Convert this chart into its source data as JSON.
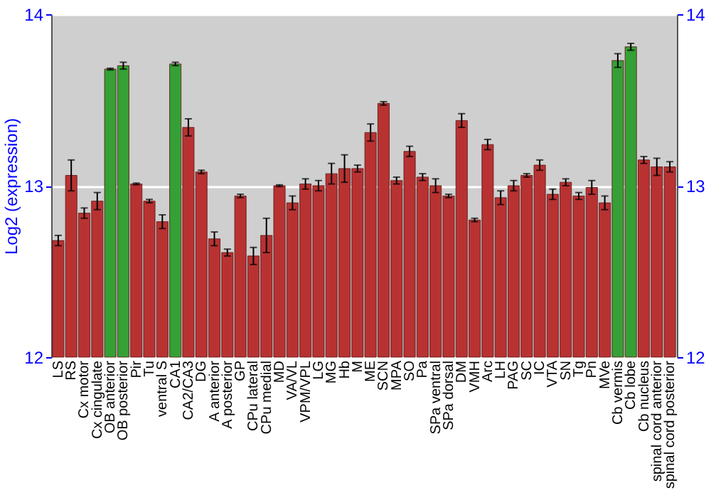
{
  "chart_data": {
    "type": "bar",
    "ylabel": "Log2 (expression)",
    "categories": [
      "LS",
      "RS",
      "Cx motor",
      "Cx cingulate",
      "OB anterior",
      "OB posterior",
      "Pir",
      "Tu",
      "ventral S",
      "CA1",
      "CA2/CA3",
      "DG",
      "A anterior",
      "A posterior",
      "GP",
      "CPu lateral",
      "CPu medial",
      "MD",
      "VA/VL",
      "VPM/VPL",
      "LG",
      "MG",
      "Hb",
      "M",
      "ME",
      "SCN",
      "MPA",
      "SO",
      "Pa",
      "SPa ventral",
      "SPa dorsal",
      "DM",
      "VMH",
      "Arc",
      "LH",
      "PAG",
      "SC",
      "IC",
      "VTA",
      "SN",
      "Tg",
      "Pn",
      "MVe",
      "Cb vermis",
      "Cb lobe",
      "Cb nucleus",
      "spinal cord anterior",
      "spinal cord posterior"
    ],
    "values": [
      12.68,
      13.06,
      12.84,
      12.91,
      13.68,
      13.7,
      13.01,
      12.91,
      12.79,
      13.71,
      13.34,
      13.08,
      12.69,
      12.61,
      12.94,
      12.59,
      12.71,
      13.0,
      12.9,
      13.01,
      13.0,
      13.07,
      13.1,
      13.1,
      13.31,
      13.48,
      13.03,
      13.2,
      13.05,
      13.0,
      12.94,
      13.38,
      12.8,
      13.24,
      12.93,
      13.0,
      13.06,
      13.12,
      12.95,
      13.02,
      12.94,
      12.99,
      12.9,
      13.73,
      13.81,
      13.15,
      13.11,
      13.11
    ],
    "errors": [
      0.03,
      0.09,
      0.03,
      0.05,
      0.005,
      0.02,
      0.005,
      0.01,
      0.04,
      0.01,
      0.05,
      0.01,
      0.04,
      0.02,
      0.01,
      0.05,
      0.1,
      0.005,
      0.04,
      0.03,
      0.03,
      0.06,
      0.08,
      0.02,
      0.05,
      0.01,
      0.02,
      0.03,
      0.02,
      0.04,
      0.01,
      0.04,
      0.01,
      0.03,
      0.04,
      0.03,
      0.01,
      0.03,
      0.03,
      0.02,
      0.02,
      0.04,
      0.04,
      0.04,
      0.02,
      0.02,
      0.05,
      0.03
    ],
    "colors": [
      "#b83232",
      "#b83232",
      "#b83232",
      "#b83232",
      "#35a035",
      "#35a035",
      "#b83232",
      "#b83232",
      "#b83232",
      "#35a035",
      "#b83232",
      "#b83232",
      "#b83232",
      "#b83232",
      "#b83232",
      "#b83232",
      "#b83232",
      "#b83232",
      "#b83232",
      "#b83232",
      "#b83232",
      "#b83232",
      "#b83232",
      "#b83232",
      "#b83232",
      "#b83232",
      "#b83232",
      "#b83232",
      "#b83232",
      "#b83232",
      "#b83232",
      "#b83232",
      "#b83232",
      "#b83232",
      "#b83232",
      "#b83232",
      "#b83232",
      "#b83232",
      "#b83232",
      "#b83232",
      "#b83232",
      "#b83232",
      "#b83232",
      "#35a035",
      "#35a035",
      "#b83232",
      "#b83232",
      "#b83232"
    ],
    "ylim": [
      12,
      14
    ],
    "yticks": [
      12,
      13,
      14
    ],
    "y2lim": [
      12,
      14
    ],
    "y2ticks": [
      12,
      13,
      14
    ],
    "grid": "y"
  }
}
